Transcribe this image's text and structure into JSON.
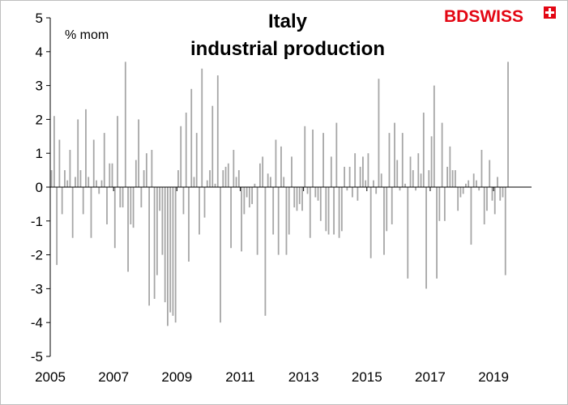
{
  "brand": {
    "logo_text_bd": "BD",
    "logo_text_swiss": "SWISS",
    "logo_color": "#e30613"
  },
  "chart_data": {
    "type": "bar",
    "title": [
      "Italy",
      "industrial production"
    ],
    "unit_label": "% mom",
    "bar_color": "#a6a6a6",
    "axis_color": "#000000",
    "ylim": [
      -5,
      5
    ],
    "yticks": [
      -5,
      -4,
      -3,
      -2,
      -1,
      0,
      1,
      2,
      3,
      4,
      5
    ],
    "xlim": [
      2005,
      2020.2
    ],
    "xticks": [
      2005,
      2007,
      2009,
      2011,
      2013,
      2015,
      2017,
      2019
    ],
    "grid": false,
    "legend": "none",
    "start": "2005-01",
    "frequency": "monthly",
    "values": [
      0.5,
      2.1,
      -2.3,
      1.4,
      -0.8,
      0.5,
      0.2,
      1.1,
      -1.5,
      0.3,
      2.0,
      0.5,
      -0.8,
      2.3,
      0.3,
      -1.5,
      1.4,
      0.2,
      -0.2,
      0.2,
      1.6,
      -1.1,
      0.7,
      0.7,
      -1.8,
      2.1,
      -0.6,
      -0.6,
      3.7,
      -2.5,
      -1.1,
      -1.2,
      0.8,
      2.0,
      -0.6,
      0.5,
      1.0,
      -3.5,
      1.1,
      -3.3,
      -2.6,
      -0.7,
      -2.0,
      -3.4,
      -4.1,
      -3.7,
      -3.8,
      -4.0,
      0.5,
      1.8,
      -0.8,
      2.2,
      -2.2,
      2.9,
      0.3,
      1.6,
      -1.4,
      3.5,
      -0.9,
      0.2,
      0.5,
      2.4,
      0.1,
      3.3,
      -4.0,
      0.5,
      0.6,
      0.7,
      -1.8,
      1.1,
      0.3,
      0.5,
      -1.9,
      -0.8,
      -0.3,
      -0.6,
      -0.5,
      0.1,
      -2.0,
      0.7,
      0.9,
      -3.8,
      0.4,
      0.3,
      -1.4,
      1.4,
      -2.0,
      1.2,
      0.3,
      -2.0,
      -1.4,
      0.9,
      -0.6,
      -0.7,
      -0.5,
      -0.7,
      1.8,
      -0.2,
      -1.5,
      1.7,
      -0.3,
      -0.4,
      -1.0,
      1.6,
      -1.3,
      -1.4,
      0.9,
      -1.4,
      1.9,
      -1.5,
      -1.3,
      0.6,
      -0.1,
      0.6,
      -0.3,
      1.0,
      -0.4,
      0.6,
      0.9,
      0.2,
      1.0,
      -2.1,
      0.2,
      -0.2,
      3.2,
      0.4,
      -2.0,
      -1.3,
      1.6,
      -1.1,
      1.9,
      0.8,
      -0.1,
      1.6,
      0.1,
      -2.7,
      0.9,
      0.5,
      -0.1,
      1.0,
      0.4,
      2.2,
      -3.0,
      0.5,
      1.5,
      3.0,
      -2.7,
      -1.0,
      1.9,
      -1.0,
      0.6,
      1.2,
      0.5,
      0.5,
      -0.7,
      -0.3,
      -0.2,
      0.1,
      0.2,
      -1.7,
      0.4,
      0.2,
      -0.1,
      1.1,
      -1.1,
      -0.7,
      0.8,
      -0.4,
      -0.8,
      0.3,
      -0.4,
      -0.3,
      -2.6,
      3.7
    ]
  }
}
